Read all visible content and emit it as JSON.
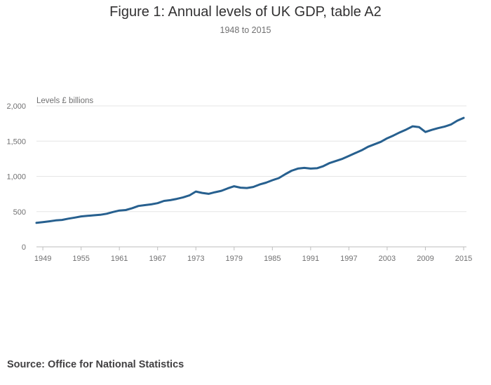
{
  "title": "Figure 1: Annual levels of UK GDP, table A2",
  "subtitle": "1948 to 2015",
  "source": "Source: Office for National Statistics",
  "colors": {
    "line": "#27608f",
    "grid": "#e6e6e6",
    "axis": "#bebebe",
    "text": "#707071"
  },
  "chart_data": {
    "type": "line",
    "ylabel": "Levels £ billions",
    "xlim": [
      1948,
      2015
    ],
    "ylim": [
      0,
      2000
    ],
    "y_ticks": [
      0,
      500,
      1000,
      1500,
      2000
    ],
    "y_tick_labels": [
      "0",
      "500",
      "1,000",
      "1,500",
      "2,000"
    ],
    "x_ticks": [
      1949,
      1955,
      1961,
      1967,
      1973,
      1979,
      1985,
      1991,
      1997,
      2003,
      2009,
      2015
    ],
    "x_tick_labels": [
      "1949",
      "1955",
      "1961",
      "1967",
      "1973",
      "1979",
      "1985",
      "1991",
      "1997",
      "2003",
      "2009",
      "2015"
    ],
    "grid": true,
    "legend": false,
    "series": [
      {
        "x": [
          1948,
          1949,
          1950,
          1951,
          1952,
          1953,
          1954,
          1955,
          1956,
          1957,
          1958,
          1959,
          1960,
          1961,
          1962,
          1963,
          1964,
          1965,
          1966,
          1967,
          1968,
          1969,
          1970,
          1971,
          1972,
          1973,
          1974,
          1975,
          1976,
          1977,
          1978,
          1979,
          1980,
          1981,
          1982,
          1983,
          1984,
          1985,
          1986,
          1987,
          1988,
          1989,
          1990,
          1991,
          1992,
          1993,
          1994,
          1995,
          1996,
          1997,
          1998,
          1999,
          2000,
          2001,
          2002,
          2003,
          2004,
          2005,
          2006,
          2007,
          2008,
          2009,
          2010,
          2011,
          2012,
          2013,
          2014,
          2015
        ],
        "values": [
          340,
          350,
          362,
          375,
          382,
          400,
          415,
          432,
          440,
          448,
          455,
          470,
          495,
          515,
          522,
          548,
          580,
          592,
          603,
          620,
          652,
          663,
          681,
          702,
          730,
          785,
          765,
          752,
          775,
          795,
          830,
          860,
          840,
          835,
          850,
          885,
          910,
          945,
          975,
          1030,
          1080,
          1110,
          1120,
          1110,
          1115,
          1145,
          1190,
          1220,
          1250,
          1290,
          1330,
          1370,
          1420,
          1455,
          1490,
          1540,
          1580,
          1625,
          1665,
          1710,
          1700,
          1630,
          1660,
          1685,
          1705,
          1735,
          1790,
          1830
        ]
      }
    ]
  }
}
